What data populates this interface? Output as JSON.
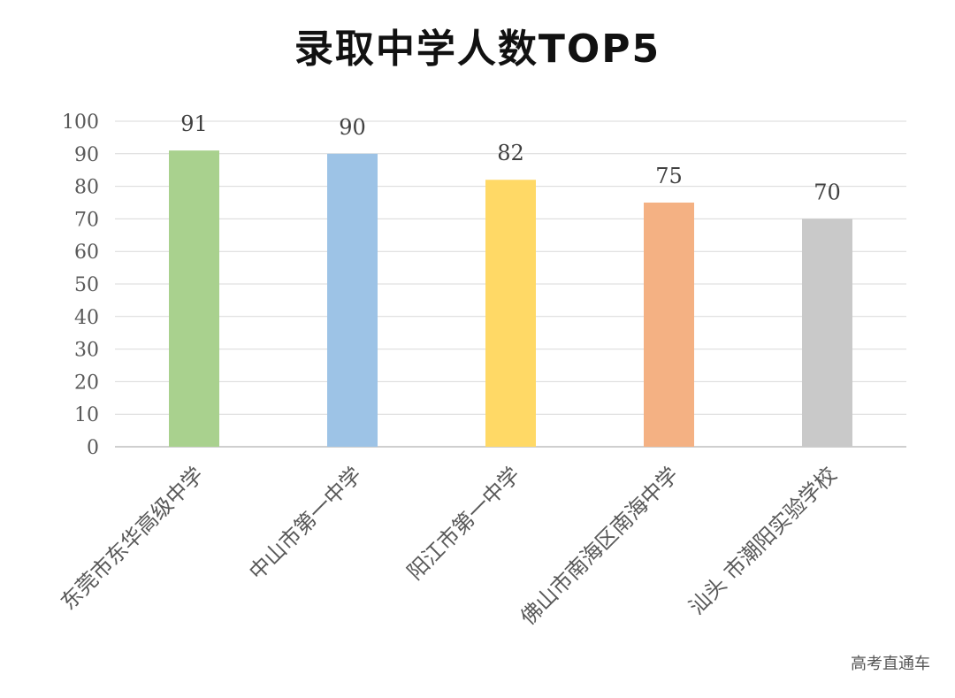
{
  "chart_data": {
    "type": "bar",
    "title": "录取中学人数TOP5",
    "categories": [
      "东莞市东华高级中学",
      "中山市第一中学",
      "阳江市第一中学",
      "佛山市南海区南海中学",
      "汕头 市潮阳实验学校"
    ],
    "values": [
      91,
      90,
      82,
      75,
      70
    ],
    "colors": [
      "#a9d18e",
      "#9dc3e6",
      "#ffd966",
      "#f4b183",
      "#c9c9c9"
    ],
    "ylim": [
      0,
      100
    ],
    "yticks": [
      0,
      10,
      20,
      30,
      40,
      50,
      60,
      70,
      80,
      90,
      100
    ],
    "grid": true,
    "xlabel": "",
    "ylabel": ""
  },
  "watermark": "高考直通车"
}
